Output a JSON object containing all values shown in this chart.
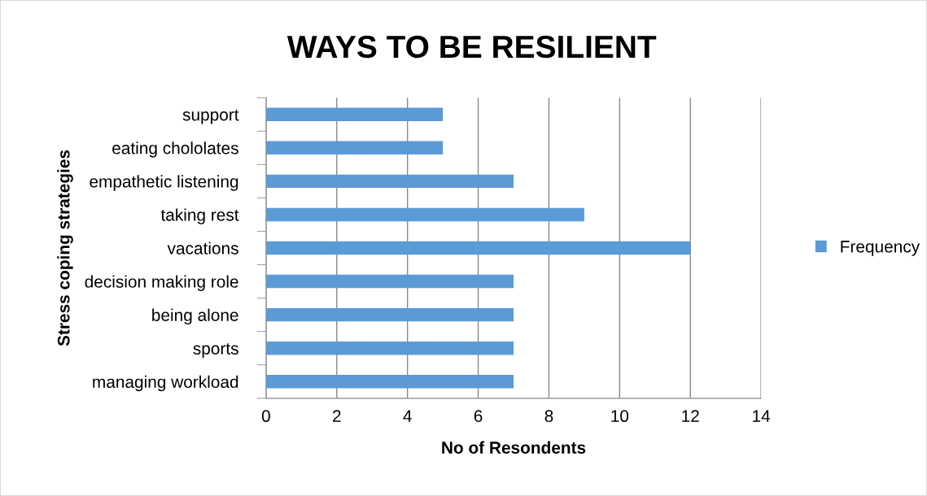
{
  "chart_data": {
    "type": "bar",
    "orientation": "horizontal",
    "title": "WAYS TO BE RESILIENT",
    "xlabel": "No of Resondents",
    "ylabel": "Stress coping strategies",
    "categories": [
      "support",
      "eating chololates",
      "empathetic listening",
      "taking rest",
      "vacations",
      "decision making role",
      "being alone",
      "sports",
      "managing workload"
    ],
    "series": [
      {
        "name": "Frequency",
        "color": "#5b9bd5",
        "values": [
          5,
          5,
          7,
          9,
          12,
          7,
          7,
          7,
          7
        ]
      }
    ],
    "xlim": [
      0,
      14
    ],
    "xticks": [
      0,
      2,
      4,
      6,
      8,
      10,
      12,
      14
    ],
    "grid": "x",
    "legend": "right"
  }
}
